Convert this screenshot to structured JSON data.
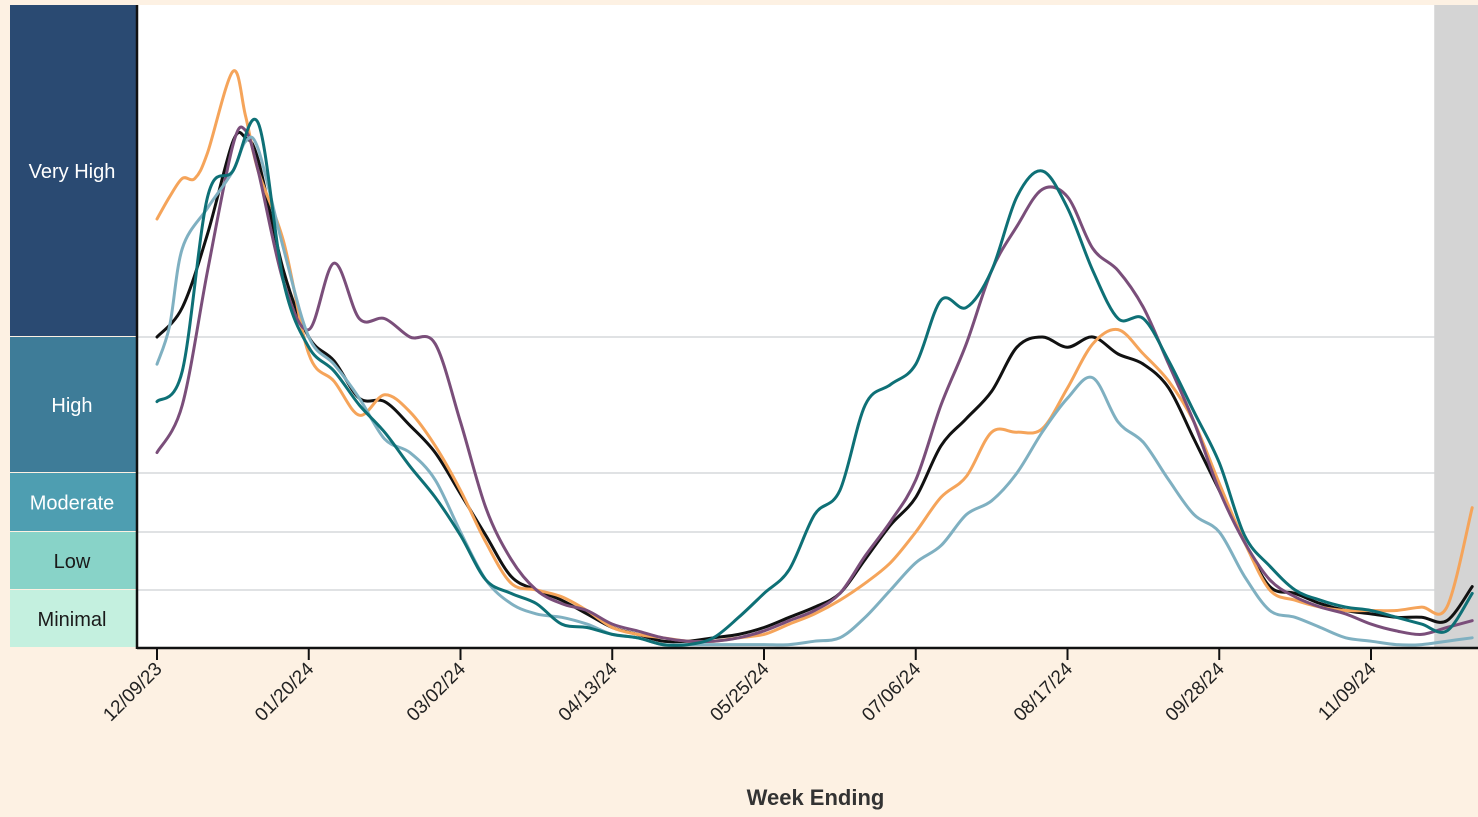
{
  "chart_data": {
    "type": "line",
    "xlabel": "Week Ending",
    "x_ticks": [
      "12/09/23",
      "01/20/24",
      "03/02/24",
      "04/13/24",
      "05/25/24",
      "07/06/24",
      "08/17/24",
      "09/28/24",
      "11/09/24"
    ],
    "x_tick_weeks": [
      0,
      6,
      12,
      18,
      24,
      30,
      36,
      42,
      48
    ],
    "x_range_weeks": [
      0,
      52
    ],
    "x_unit": "week",
    "shaded_region": {
      "from_week": 50.5,
      "to_week": 52,
      "color": "#d4d4d4"
    },
    "levels": [
      {
        "label": "Very High",
        "from": 11,
        "to": 20,
        "fill": "#2a4a72",
        "text_color": "#ffffff"
      },
      {
        "label": "High",
        "from": 7,
        "to": 11,
        "fill": "#3e7c98",
        "text_color": "#ffffff"
      },
      {
        "label": "Moderate",
        "from": 5.3,
        "to": 7,
        "fill": "#4e9eb1",
        "text_color": "#ffffff"
      },
      {
        "label": "Low",
        "from": 3.6,
        "to": 5.3,
        "fill": "#88d3c8",
        "text_color": "#1a1a1a"
      },
      {
        "label": "Minimal",
        "from": 1.9,
        "to": 3.6,
        "fill": "#c4f0df",
        "text_color": "#1a1a1a"
      }
    ],
    "y_range": [
      1.9,
      20
    ],
    "series": [
      {
        "color": "#111111",
        "points": [
          [
            0,
            11.0
          ],
          [
            1,
            11.8
          ],
          [
            2,
            13.8
          ],
          [
            3,
            16.3
          ],
          [
            3.5,
            16.4
          ],
          [
            4,
            15.8
          ],
          [
            5,
            12.8
          ],
          [
            6,
            11.0
          ],
          [
            7,
            10.3
          ],
          [
            8,
            9.2
          ],
          [
            9,
            9.1
          ],
          [
            10,
            8.4
          ],
          [
            11,
            7.6
          ],
          [
            12,
            6.4
          ],
          [
            13,
            5.2
          ],
          [
            14,
            4.0
          ],
          [
            15,
            3.6
          ],
          [
            16,
            3.3
          ],
          [
            17,
            2.9
          ],
          [
            18,
            2.5
          ],
          [
            19,
            2.3
          ],
          [
            20,
            2.1
          ],
          [
            21,
            2.1
          ],
          [
            22,
            2.2
          ],
          [
            23,
            2.3
          ],
          [
            24,
            2.5
          ],
          [
            25,
            2.8
          ],
          [
            26,
            3.1
          ],
          [
            27,
            3.5
          ],
          [
            28,
            4.5
          ],
          [
            29,
            5.5
          ],
          [
            30,
            6.3
          ],
          [
            31,
            7.8
          ],
          [
            32,
            8.6
          ],
          [
            33,
            9.4
          ],
          [
            34,
            10.7
          ],
          [
            35,
            11.0
          ],
          [
            36,
            10.7
          ],
          [
            37,
            11.0
          ],
          [
            38,
            10.5
          ],
          [
            39,
            10.2
          ],
          [
            40,
            9.5
          ],
          [
            41,
            8.0
          ],
          [
            42,
            6.5
          ],
          [
            43,
            5.0
          ],
          [
            44,
            3.7
          ],
          [
            45,
            3.5
          ],
          [
            46,
            3.2
          ],
          [
            47,
            3.0
          ],
          [
            48,
            2.9
          ],
          [
            49,
            2.8
          ],
          [
            50,
            2.8
          ],
          [
            51,
            2.7
          ],
          [
            52,
            3.7
          ]
        ]
      },
      {
        "color": "#f5a45a",
        "points": [
          [
            0,
            14.2
          ],
          [
            0.5,
            14.8
          ],
          [
            1,
            15.3
          ],
          [
            1.5,
            15.3
          ],
          [
            2,
            16.0
          ],
          [
            3,
            18.2
          ],
          [
            3.5,
            17.0
          ],
          [
            4,
            15.5
          ],
          [
            5,
            13.6
          ],
          [
            6,
            10.5
          ],
          [
            7,
            9.7
          ],
          [
            8,
            8.7
          ],
          [
            9,
            9.3
          ],
          [
            10,
            8.8
          ],
          [
            11,
            7.8
          ],
          [
            12,
            6.5
          ],
          [
            13,
            5.0
          ],
          [
            14,
            3.8
          ],
          [
            15,
            3.6
          ],
          [
            16,
            3.4
          ],
          [
            17,
            3.0
          ],
          [
            18,
            2.5
          ],
          [
            19,
            2.3
          ],
          [
            20,
            2.2
          ],
          [
            21,
            2.1
          ],
          [
            22,
            2.1
          ],
          [
            23,
            2.2
          ],
          [
            24,
            2.3
          ],
          [
            25,
            2.6
          ],
          [
            26,
            2.9
          ],
          [
            27,
            3.3
          ],
          [
            28,
            3.8
          ],
          [
            29,
            4.4
          ],
          [
            30,
            5.3
          ],
          [
            31,
            6.3
          ],
          [
            32,
            6.9
          ],
          [
            33,
            8.2
          ],
          [
            34,
            8.2
          ],
          [
            35,
            8.3
          ],
          [
            36,
            9.5
          ],
          [
            37,
            10.8
          ],
          [
            38,
            11.2
          ],
          [
            39,
            10.5
          ],
          [
            40,
            9.7
          ],
          [
            41,
            8.5
          ],
          [
            42,
            6.7
          ],
          [
            43,
            5.0
          ],
          [
            44,
            3.6
          ],
          [
            45,
            3.3
          ],
          [
            46,
            3.1
          ],
          [
            47,
            3.0
          ],
          [
            48,
            3.0
          ],
          [
            49,
            3.0
          ],
          [
            50,
            3.1
          ],
          [
            51,
            3.1
          ],
          [
            52,
            6.0
          ]
        ]
      },
      {
        "color": "#7a4e7a",
        "points": [
          [
            0,
            7.6
          ],
          [
            1,
            9.0
          ],
          [
            2,
            12.8
          ],
          [
            3,
            16.2
          ],
          [
            3.5,
            16.6
          ],
          [
            4,
            15.5
          ],
          [
            5,
            12.5
          ],
          [
            6,
            11.2
          ],
          [
            7,
            13.0
          ],
          [
            8,
            11.5
          ],
          [
            9,
            11.5
          ],
          [
            10,
            11.0
          ],
          [
            11,
            10.8
          ],
          [
            12,
            8.5
          ],
          [
            13,
            6.0
          ],
          [
            14,
            4.5
          ],
          [
            15,
            3.6
          ],
          [
            16,
            3.2
          ],
          [
            17,
            3.0
          ],
          [
            18,
            2.6
          ],
          [
            19,
            2.4
          ],
          [
            20,
            2.2
          ],
          [
            21,
            2.1
          ],
          [
            22,
            2.1
          ],
          [
            23,
            2.2
          ],
          [
            24,
            2.4
          ],
          [
            25,
            2.7
          ],
          [
            26,
            3.0
          ],
          [
            27,
            3.5
          ],
          [
            28,
            4.6
          ],
          [
            29,
            5.6
          ],
          [
            30,
            6.8
          ],
          [
            31,
            9.0
          ],
          [
            32,
            10.8
          ],
          [
            33,
            12.8
          ],
          [
            34,
            14.0
          ],
          [
            35,
            15.0
          ],
          [
            36,
            14.8
          ],
          [
            37,
            13.4
          ],
          [
            38,
            12.8
          ],
          [
            39,
            11.8
          ],
          [
            40,
            10.2
          ],
          [
            41,
            8.5
          ],
          [
            42,
            6.5
          ],
          [
            43,
            5.0
          ],
          [
            44,
            3.9
          ],
          [
            45,
            3.4
          ],
          [
            46,
            3.1
          ],
          [
            47,
            2.9
          ],
          [
            48,
            2.6
          ],
          [
            49,
            2.4
          ],
          [
            50,
            2.3
          ],
          [
            51,
            2.5
          ],
          [
            52,
            2.7
          ]
        ]
      },
      {
        "color": "#7fb0c1",
        "points": [
          [
            0,
            10.2
          ],
          [
            0.5,
            11.3
          ],
          [
            1,
            13.4
          ],
          [
            2,
            14.5
          ],
          [
            3,
            15.5
          ],
          [
            3.5,
            16.3
          ],
          [
            4,
            16.1
          ],
          [
            5,
            13.4
          ],
          [
            6,
            11.0
          ],
          [
            7,
            10.2
          ],
          [
            8,
            9.2
          ],
          [
            9,
            8.0
          ],
          [
            10,
            7.6
          ],
          [
            11,
            6.8
          ],
          [
            12,
            5.3
          ],
          [
            13,
            3.9
          ],
          [
            14,
            3.2
          ],
          [
            15,
            2.9
          ],
          [
            16,
            2.8
          ],
          [
            17,
            2.6
          ],
          [
            18,
            2.3
          ],
          [
            19,
            2.2
          ],
          [
            20,
            2.0
          ],
          [
            21,
            2.0
          ],
          [
            22,
            2.0
          ],
          [
            23,
            2.0
          ],
          [
            24,
            2.0
          ],
          [
            25,
            2.0
          ],
          [
            26,
            2.1
          ],
          [
            27,
            2.2
          ],
          [
            28,
            2.8
          ],
          [
            29,
            3.6
          ],
          [
            30,
            4.4
          ],
          [
            31,
            4.9
          ],
          [
            32,
            5.8
          ],
          [
            33,
            6.2
          ],
          [
            34,
            7.0
          ],
          [
            35,
            8.2
          ],
          [
            36,
            9.2
          ],
          [
            37,
            9.8
          ],
          [
            38,
            8.5
          ],
          [
            39,
            7.9
          ],
          [
            40,
            6.8
          ],
          [
            41,
            5.8
          ],
          [
            42,
            5.3
          ],
          [
            43,
            4.0
          ],
          [
            44,
            3.0
          ],
          [
            45,
            2.8
          ],
          [
            46,
            2.5
          ],
          [
            47,
            2.2
          ],
          [
            48,
            2.1
          ],
          [
            49,
            2.0
          ],
          [
            50,
            2.0
          ],
          [
            51,
            2.1
          ],
          [
            52,
            2.2
          ]
        ]
      },
      {
        "color": "#0e7076",
        "points": [
          [
            0,
            9.1
          ],
          [
            1,
            10.0
          ],
          [
            2,
            14.8
          ],
          [
            3,
            15.5
          ],
          [
            4,
            16.8
          ],
          [
            5,
            12.5
          ],
          [
            6,
            10.7
          ],
          [
            7,
            10.0
          ],
          [
            8,
            9.0
          ],
          [
            9,
            8.2
          ],
          [
            10,
            7.2
          ],
          [
            11,
            6.3
          ],
          [
            12,
            5.2
          ],
          [
            13,
            3.9
          ],
          [
            14,
            3.5
          ],
          [
            15,
            3.2
          ],
          [
            16,
            2.6
          ],
          [
            17,
            2.5
          ],
          [
            18,
            2.3
          ],
          [
            19,
            2.2
          ],
          [
            20,
            2.0
          ],
          [
            21,
            2.0
          ],
          [
            22,
            2.2
          ],
          [
            23,
            2.8
          ],
          [
            24,
            3.5
          ],
          [
            25,
            4.2
          ],
          [
            26,
            5.8
          ],
          [
            27,
            6.5
          ],
          [
            28,
            9.0
          ],
          [
            29,
            9.6
          ],
          [
            30,
            10.2
          ],
          [
            31,
            12.0
          ],
          [
            32,
            11.8
          ],
          [
            33,
            12.8
          ],
          [
            34,
            14.8
          ],
          [
            35,
            15.5
          ],
          [
            36,
            14.5
          ],
          [
            37,
            12.8
          ],
          [
            38,
            11.5
          ],
          [
            39,
            11.5
          ],
          [
            40,
            10.3
          ],
          [
            41,
            8.8
          ],
          [
            42,
            7.3
          ],
          [
            43,
            5.2
          ],
          [
            44,
            4.3
          ],
          [
            45,
            3.6
          ],
          [
            46,
            3.3
          ],
          [
            47,
            3.1
          ],
          [
            48,
            3.0
          ],
          [
            49,
            2.8
          ],
          [
            50,
            2.6
          ],
          [
            51,
            2.4
          ],
          [
            52,
            3.5
          ]
        ]
      }
    ]
  }
}
